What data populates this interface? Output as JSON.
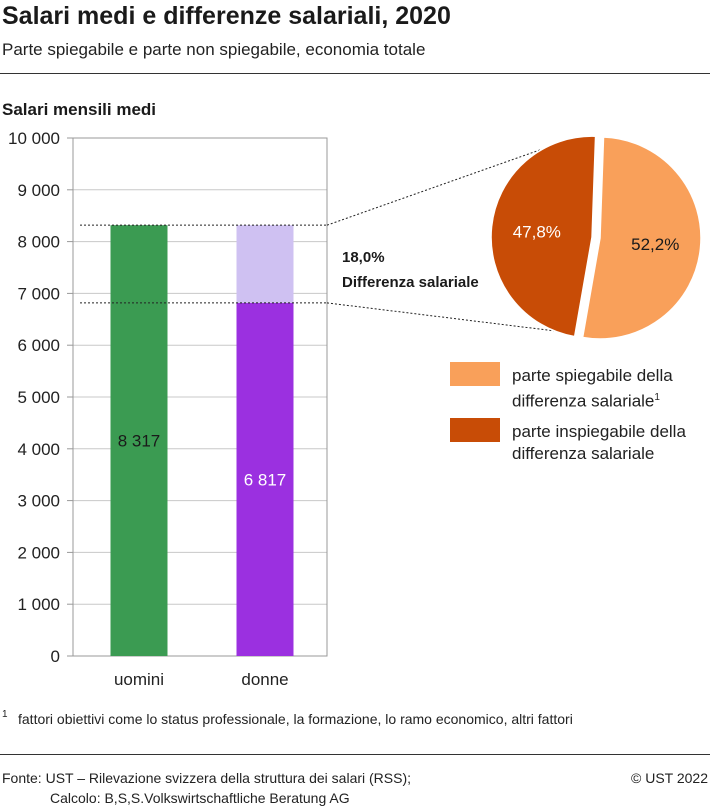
{
  "title": "Salari medi e differenze salariali, 2020",
  "subtitle": "Parte spiegabile e parte non spiegabile, economia totale",
  "colors": {
    "men": "#3b9b52",
    "women_base": "#9b30e0",
    "women_gap": "#cfc1f2",
    "explained": "#f9a05a",
    "unexplained": "#c84c06"
  },
  "chart_data": [
    {
      "type": "bar",
      "ylabel": "Salari mensili medi",
      "ylim": [
        0,
        10000
      ],
      "yticks": [
        0,
        1000,
        2000,
        3000,
        4000,
        5000,
        6000,
        7000,
        8000,
        9000,
        10000
      ],
      "ytick_labels": [
        "0",
        "1 000",
        "2 000",
        "3 000",
        "4 000",
        "5 000",
        "6 000",
        "7 000",
        "8 000",
        "9 000",
        "10 000"
      ],
      "categories": [
        "uomini",
        "donne"
      ],
      "values": [
        8317,
        6817
      ],
      "value_labels": [
        "8 317",
        "6 817"
      ],
      "gap": {
        "from": 6817,
        "to": 8317
      },
      "annotation": {
        "value": "18,0%",
        "label": "Differenza salariale"
      }
    },
    {
      "type": "pie",
      "labels": [
        "parte spiegabile della differenza salariale",
        "parte inspiegabile della differenza salariale"
      ],
      "values": [
        52.2,
        47.8
      ],
      "value_labels": [
        "52,2%",
        "47,8%"
      ],
      "exploded": [
        false,
        true
      ],
      "legend_position": "bottom-right"
    }
  ],
  "legend": [
    {
      "line1": "parte spiegabile della",
      "line2": "differenza salariale",
      "sup": "1"
    },
    {
      "line1": "parte inspiegabile della",
      "line2": "differenza salariale"
    }
  ],
  "footnote": {
    "mark": "1",
    "text": "fattori obiettivi come lo status professionale, la formazione, lo ramo economico, altri fattori"
  },
  "source": {
    "line1": "Fonte: UST – Rilevazione svizzera della struttura dei salari (RSS);",
    "line2": "Calcolo: B,S,S.Volkswirtschaftliche Beratung AG",
    "copyright": "© UST 2022"
  }
}
